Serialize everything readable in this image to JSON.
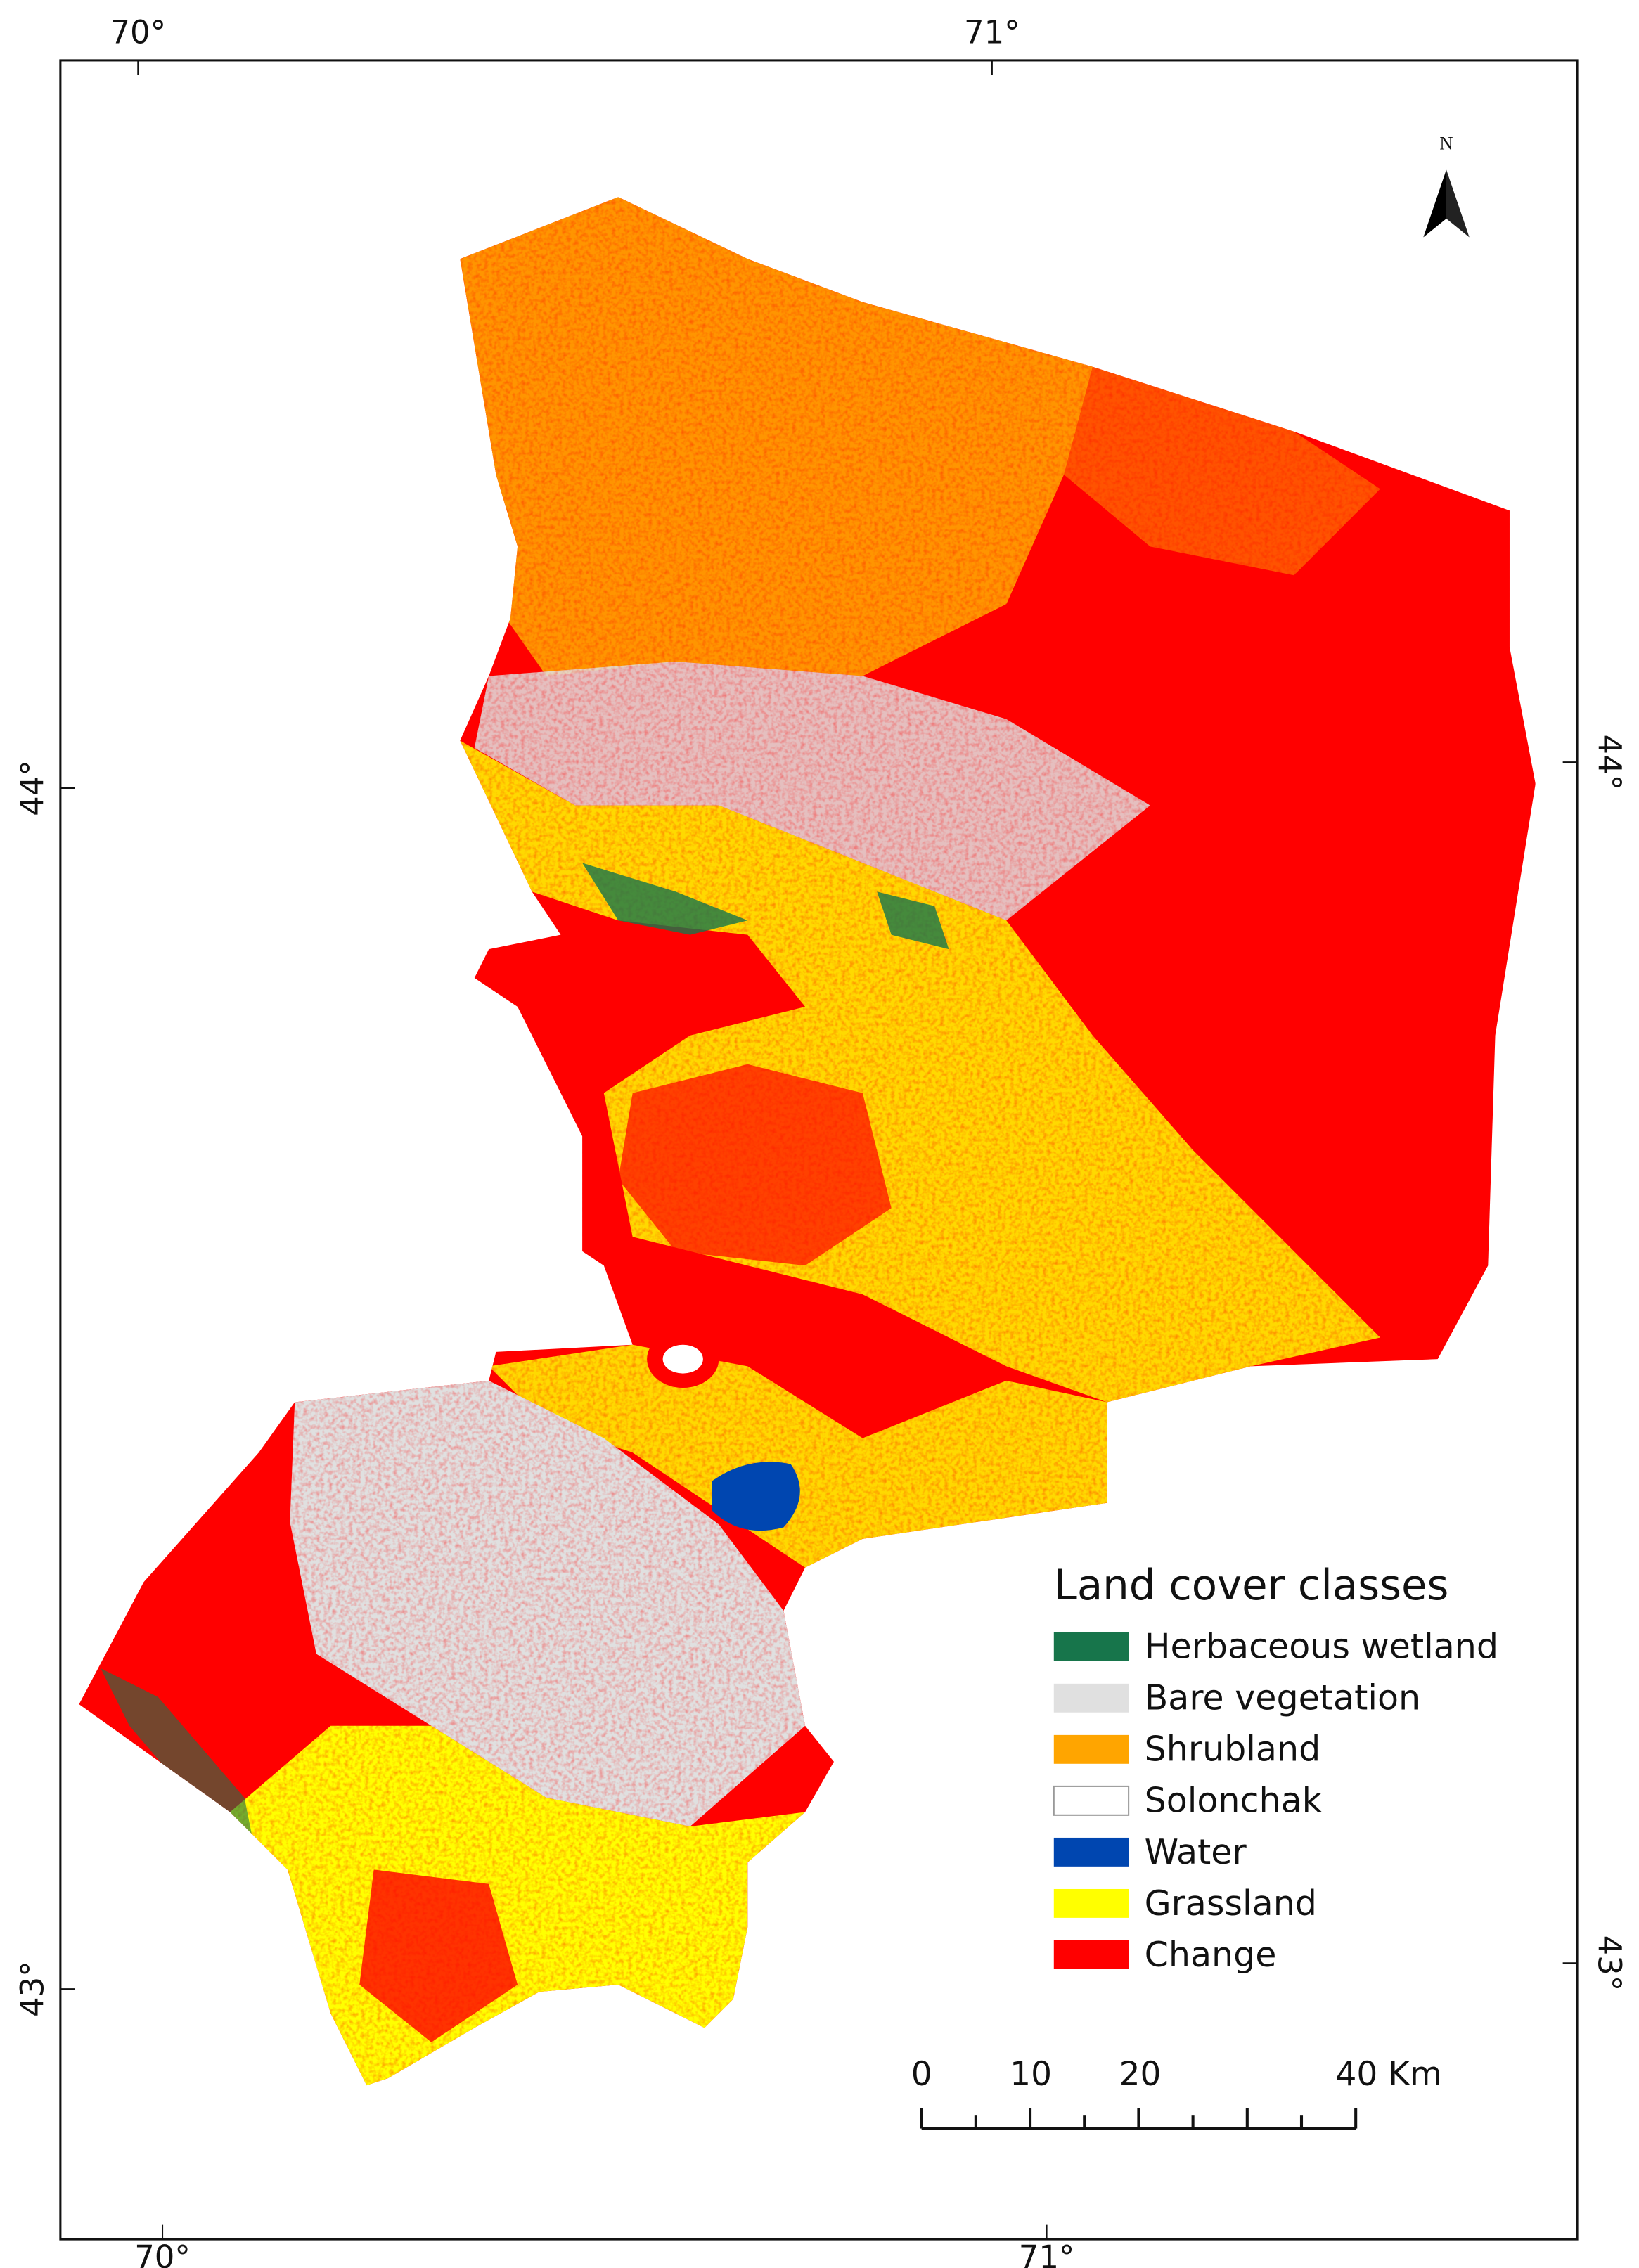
{
  "map": {
    "graticule": {
      "top": [
        "70°",
        "71°"
      ],
      "bottom": [
        "70°",
        "71°"
      ],
      "left": [
        "44°",
        "43°"
      ],
      "right": [
        "44°",
        "43°"
      ]
    },
    "north_arrow": "N",
    "legend": {
      "title": "Land cover classes",
      "items": [
        {
          "label": "Herbaceous wetland",
          "color": "#17754b"
        },
        {
          "label": "Bare vegetation",
          "color": "#e0e0e0"
        },
        {
          "label": "Shrubland",
          "color": "#ffa500"
        },
        {
          "label": "Solonchak",
          "color": "#ffffff"
        },
        {
          "label": "Water",
          "color": "#0046b0"
        },
        {
          "label": "Grassland",
          "color": "#ffff00"
        },
        {
          "label": "Change",
          "color": "#ff0000"
        }
      ]
    },
    "scale_bar": [
      "0",
      "10",
      "20",
      "40 Km"
    ]
  }
}
